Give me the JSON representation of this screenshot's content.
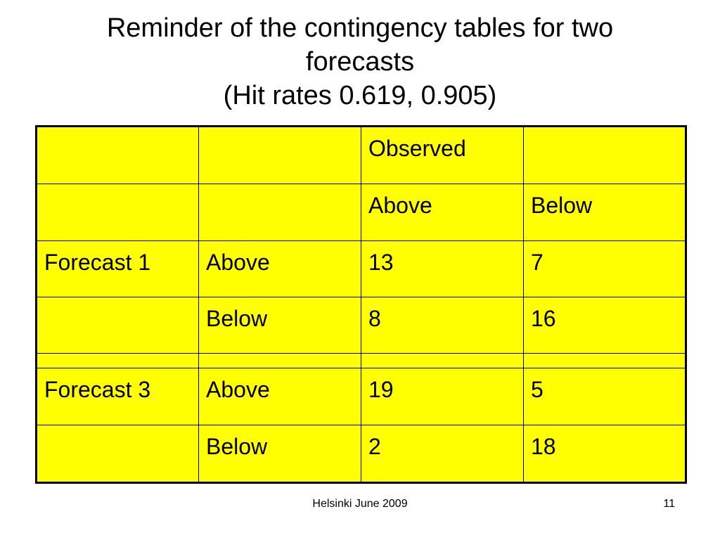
{
  "slide": {
    "title_lines": [
      "Reminder of the contingency tables for two",
      "forecasts",
      "(Hit rates 0.619, 0.905)"
    ]
  },
  "table": {
    "rows": [
      [
        "",
        "",
        "Observed",
        ""
      ],
      [
        "",
        "",
        "Above",
        "Below"
      ],
      [
        "Forecast 1",
        "Above",
        "13",
        "7"
      ],
      [
        "",
        "Below",
        "8",
        "16"
      ],
      [
        "",
        "",
        "",
        ""
      ],
      [
        "Forecast 3",
        "Above",
        "19",
        "5"
      ],
      [
        "",
        "Below",
        "2",
        "18"
      ]
    ],
    "cell_color": "#ffff00"
  },
  "footer": {
    "center_text": "Helsinki June 2009",
    "page_number": "11"
  }
}
